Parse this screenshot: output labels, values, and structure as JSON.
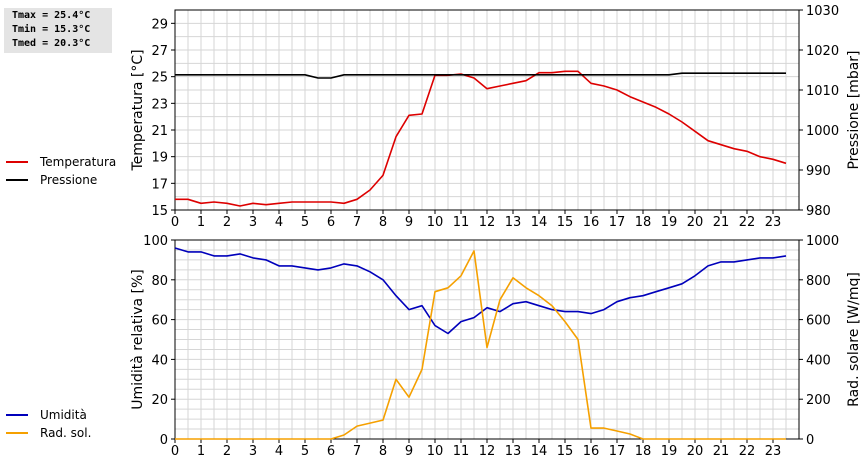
{
  "stats": {
    "tmax": "Tmax = 25.4°C",
    "tmin": "Tmin = 15.3°C",
    "tmed": "Tmed = 20.3°C"
  },
  "colors": {
    "temperatura": "#dd0000",
    "pressione": "#000000",
    "umidita": "#0000bb",
    "rad_sol": "#f5a000",
    "grid": "#d6d6d6"
  },
  "legend_top": [
    {
      "label": "Temperatura",
      "color": "#dd0000"
    },
    {
      "label": "Pressione",
      "color": "#000000"
    }
  ],
  "legend_bottom": [
    {
      "label": "Umidità",
      "color": "#0000bb"
    },
    {
      "label": "Rad. sol.",
      "color": "#f5a000"
    }
  ],
  "chart_data": [
    {
      "type": "line",
      "xlim": [
        0,
        24
      ],
      "x_ticks": [
        "0",
        "1",
        "2",
        "3",
        "4",
        "5",
        "6",
        "7",
        "8",
        "9",
        "10",
        "11",
        "12",
        "13",
        "14",
        "15",
        "16",
        "17",
        "18",
        "19",
        "20",
        "21",
        "22",
        "23"
      ],
      "ylabel_left": "Temperatura [°C]",
      "ylim_left": [
        15,
        30
      ],
      "y_ticks_left": [
        "15",
        "17",
        "19",
        "21",
        "23",
        "25",
        "27",
        "29"
      ],
      "ylabel_right": "Pressione [mbar]",
      "ylim_right": [
        980,
        1030
      ],
      "y_ticks_right": [
        "980",
        "990",
        "1000",
        "1010",
        "1020",
        "1030"
      ],
      "grid": true,
      "series": [
        {
          "name": "Temperatura",
          "axis": "left",
          "x": [
            0,
            0.5,
            1,
            1.5,
            2,
            2.5,
            3,
            3.5,
            4,
            4.5,
            5,
            5.5,
            6,
            6.5,
            7,
            7.5,
            8,
            8.5,
            9,
            9.5,
            10,
            10.5,
            11,
            11.5,
            12,
            12.5,
            13,
            13.5,
            14,
            14.5,
            15,
            15.5,
            16,
            16.5,
            17,
            17.5,
            18,
            18.5,
            19,
            19.5,
            20,
            20.5,
            21,
            21.5,
            22,
            22.5,
            23,
            23.5
          ],
          "values": [
            15.8,
            15.8,
            15.5,
            15.6,
            15.5,
            15.3,
            15.5,
            15.4,
            15.5,
            15.6,
            15.6,
            15.6,
            15.6,
            15.5,
            15.8,
            16.5,
            17.6,
            20.5,
            22.1,
            22.2,
            25.1,
            25.1,
            25.2,
            24.9,
            24.1,
            24.3,
            24.5,
            24.7,
            25.3,
            25.3,
            25.4,
            25.4,
            24.5,
            24.3,
            24.0,
            23.5,
            23.1,
            22.7,
            22.2,
            21.6,
            20.9,
            20.2,
            19.9,
            19.6,
            19.4,
            19.0,
            18.8,
            18.5
          ]
        },
        {
          "name": "Pressione",
          "axis": "right",
          "x": [
            0,
            5,
            5.5,
            6,
            6.5,
            19,
            19.5,
            23.5
          ],
          "values": [
            1013.8,
            1013.8,
            1013.0,
            1013.0,
            1013.8,
            1013.8,
            1014.2,
            1014.2
          ]
        }
      ]
    },
    {
      "type": "line",
      "xlim": [
        0,
        24
      ],
      "x_ticks": [
        "0",
        "1",
        "2",
        "3",
        "4",
        "5",
        "6",
        "7",
        "8",
        "9",
        "10",
        "11",
        "12",
        "13",
        "14",
        "15",
        "16",
        "17",
        "18",
        "19",
        "20",
        "21",
        "22",
        "23"
      ],
      "ylabel_left": "Umidità relativa [%]",
      "ylim_left": [
        0,
        100
      ],
      "y_ticks_left": [
        "0",
        "20",
        "40",
        "60",
        "80",
        "100"
      ],
      "ylabel_right": "Rad. solare [W/mq]",
      "ylim_right": [
        0,
        1000
      ],
      "y_ticks_right": [
        "0",
        "200",
        "400",
        "600",
        "800",
        "1000"
      ],
      "grid": true,
      "series": [
        {
          "name": "Umidità",
          "axis": "left",
          "x": [
            0,
            0.5,
            1,
            1.5,
            2,
            2.5,
            3,
            3.5,
            4,
            4.5,
            5,
            5.5,
            6,
            6.5,
            7,
            7.5,
            8,
            8.5,
            9,
            9.5,
            10,
            10.5,
            11,
            11.5,
            12,
            12.5,
            13,
            13.5,
            14,
            14.5,
            15,
            15.5,
            16,
            16.5,
            17,
            17.5,
            18,
            18.5,
            19,
            19.5,
            20,
            20.5,
            21,
            21.5,
            22,
            22.5,
            23,
            23.5
          ],
          "values": [
            96,
            94,
            94,
            92,
            92,
            93,
            91,
            90,
            87,
            87,
            86,
            85,
            86,
            88,
            87,
            84,
            80,
            72,
            65,
            67,
            57,
            53,
            59,
            61,
            66,
            64,
            68,
            69,
            67,
            65,
            64,
            64,
            63,
            65,
            69,
            71,
            72,
            74,
            76,
            78,
            82,
            87,
            89,
            89,
            90,
            91,
            91,
            92
          ]
        },
        {
          "name": "Rad. sol.",
          "axis": "right",
          "x": [
            0,
            6,
            6.5,
            7,
            7.5,
            8,
            8.5,
            9,
            9.5,
            10,
            10.5,
            11,
            11.5,
            12,
            12.5,
            13,
            13.5,
            14,
            14.5,
            15,
            15.5,
            16,
            16.5,
            17,
            17.5,
            18,
            23.5
          ],
          "values": [
            0,
            0,
            20,
            65,
            80,
            95,
            300,
            210,
            350,
            740,
            760,
            820,
            945,
            460,
            700,
            810,
            760,
            720,
            670,
            590,
            500,
            55,
            55,
            40,
            25,
            0,
            0
          ]
        }
      ]
    }
  ]
}
